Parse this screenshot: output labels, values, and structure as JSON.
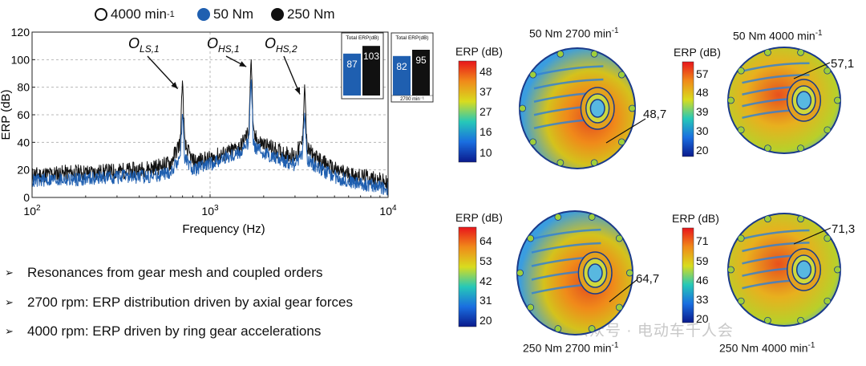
{
  "legend": {
    "items": [
      {
        "label": "4000 min",
        "sup": "-1",
        "marker": "ring"
      },
      {
        "label": "50 Nm",
        "marker": "blue"
      },
      {
        "label": "250 Nm",
        "marker": "black"
      }
    ]
  },
  "chart_data": {
    "type": "line",
    "xlabel": "Frequency (Hz)",
    "ylabel": "ERP (dB)",
    "x_scale": "log",
    "xlim": [
      100,
      10000
    ],
    "ylim": [
      0,
      120
    ],
    "x_ticks": [
      {
        "base": "10",
        "exp": "2"
      },
      {
        "base": "10",
        "exp": "3"
      },
      {
        "base": "10",
        "exp": "4"
      }
    ],
    "y_ticks": [
      "0",
      "20",
      "40",
      "60",
      "80",
      "100",
      "120"
    ],
    "grid": true,
    "series": [
      {
        "name": "250 Nm",
        "color": "#111111",
        "x": [
          100,
          130,
          170,
          220,
          300,
          400,
          500,
          600,
          680,
          700,
          720,
          800,
          900,
          1000,
          1100,
          1300,
          1500,
          1650,
          1700,
          1750,
          1900,
          2200,
          2600,
          3000,
          3300,
          3400,
          3500,
          4000,
          5000,
          6000,
          7000,
          8000,
          9000,
          10000
        ],
        "y": [
          16,
          17,
          18,
          18,
          19,
          20,
          22,
          25,
          40,
          87,
          38,
          26,
          27,
          28,
          30,
          33,
          38,
          48,
          103,
          45,
          40,
          36,
          32,
          30,
          40,
          83,
          35,
          28,
          20,
          17,
          15,
          14,
          12,
          10
        ]
      },
      {
        "name": "50 Nm",
        "color": "#1f5fb0",
        "x": [
          100,
          130,
          170,
          220,
          300,
          400,
          500,
          600,
          680,
          700,
          720,
          800,
          900,
          1000,
          1100,
          1300,
          1500,
          1650,
          1700,
          1750,
          1900,
          2200,
          2600,
          3000,
          3300,
          3400,
          3500,
          4000,
          5000,
          6000,
          7000,
          8000,
          9000,
          10000
        ],
        "y": [
          12,
          13,
          13,
          14,
          15,
          15,
          16,
          18,
          30,
          62,
          28,
          20,
          22,
          24,
          27,
          30,
          33,
          40,
          88,
          38,
          34,
          30,
          27,
          24,
          32,
          62,
          28,
          22,
          15,
          12,
          10,
          9,
          8,
          6
        ]
      }
    ],
    "annotations": [
      {
        "label": "O",
        "sub": "LS,1",
        "x": 700,
        "y": 87
      },
      {
        "label": "O",
        "sub": "HS,1",
        "x": 1700,
        "y": 103
      },
      {
        "label": "O",
        "sub": "HS,2",
        "x": 3400,
        "y": 83
      }
    ],
    "insets": [
      {
        "title": "Total ERP(dB)",
        "bars": [
          {
            "series": "50 Nm",
            "value": 87
          },
          {
            "series": "250 Nm",
            "value": 103
          }
        ],
        "footer": ""
      },
      {
        "title": "Total ERP(dB)",
        "bars": [
          {
            "series": "50 Nm",
            "value": 82
          },
          {
            "series": "250 Nm",
            "value": 95
          }
        ],
        "footer": "2700 min⁻¹"
      }
    ]
  },
  "bullets": [
    "Resonances from gear mesh and coupled orders",
    "2700 rpm: ERP distribution driven by axial gear forces",
    "4000 rpm: ERP driven by ring gear accelerations"
  ],
  "panels": [
    {
      "title": "50 Nm 2700 min",
      "sup": "-1",
      "cb_label": "ERP (dB)",
      "ticks": [
        "48",
        "37",
        "27",
        "16",
        "10"
      ],
      "callout": "48,7"
    },
    {
      "title": "50 Nm 4000 min",
      "sup": "-1",
      "cb_label": "ERP (dB)",
      "ticks": [
        "57",
        "48",
        "39",
        "30",
        "20"
      ],
      "callout": "57,1"
    },
    {
      "title": "250 Nm 2700 min",
      "sup": "-1",
      "cb_label": "ERP (dB)",
      "ticks": [
        "64",
        "53",
        "42",
        "31",
        "20"
      ],
      "callout": "64,7"
    },
    {
      "title": "250 Nm 4000 min",
      "sup": "-1",
      "cb_label": "ERP (dB)",
      "ticks": [
        "71",
        "59",
        "46",
        "33",
        "20"
      ],
      "callout": "71,3"
    }
  ],
  "watermark": "公众号 · 电动车千人会"
}
